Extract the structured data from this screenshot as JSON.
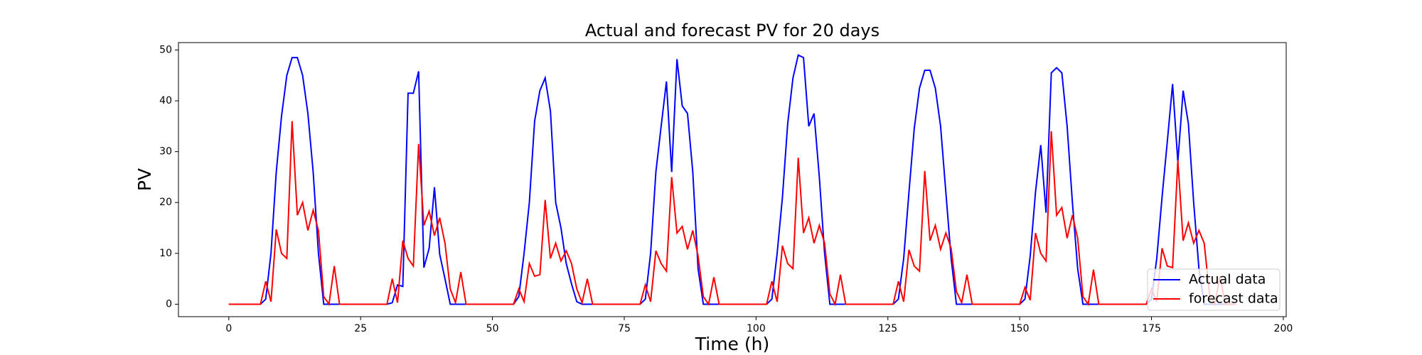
{
  "chart_data": {
    "type": "line",
    "title": "Actual and forecast PV for 20 days",
    "xlabel": "Time (h)",
    "ylabel": "PV",
    "x": [
      0,
      1,
      2,
      3,
      4,
      5,
      6,
      7,
      8,
      9,
      10,
      11,
      12,
      13,
      14,
      15,
      16,
      17,
      18,
      19,
      20,
      21,
      22,
      23,
      24,
      25,
      26,
      27,
      28,
      29,
      30,
      31,
      32,
      33,
      34,
      35,
      36,
      37,
      38,
      39,
      40,
      41,
      42,
      43,
      44,
      45,
      46,
      47,
      48,
      49,
      50,
      51,
      52,
      53,
      54,
      55,
      56,
      57,
      58,
      59,
      60,
      61,
      62,
      63,
      64,
      65,
      66,
      67,
      68,
      69,
      70,
      71,
      72,
      73,
      74,
      75,
      76,
      77,
      78,
      79,
      80,
      81,
      82,
      83,
      84,
      85,
      86,
      87,
      88,
      89,
      90,
      91,
      92,
      93,
      94,
      95,
      96,
      97,
      98,
      99,
      100,
      101,
      102,
      103,
      104,
      105,
      106,
      107,
      108,
      109,
      110,
      111,
      112,
      113,
      114,
      115,
      116,
      117,
      118,
      119,
      120,
      121,
      122,
      123,
      124,
      125,
      126,
      127,
      128,
      129,
      130,
      131,
      132,
      133,
      134,
      135,
      136,
      137,
      138,
      139,
      140,
      141,
      142,
      143,
      144,
      145,
      146,
      147,
      148,
      149,
      150,
      151,
      152,
      153,
      154,
      155,
      156,
      157,
      158,
      159,
      160,
      161,
      162,
      163,
      164,
      165,
      166,
      167,
      168,
      169,
      170,
      171,
      172,
      173,
      174,
      175,
      176,
      177,
      178,
      179,
      180,
      181,
      182,
      183,
      184,
      185,
      186,
      187,
      188,
      189,
      190,
      191
    ],
    "series": [
      {
        "name": "Actual data",
        "color": "#0000ff",
        "values": [
          0,
          0,
          0,
          0,
          0,
          0,
          0,
          1,
          10,
          26,
          37,
          45,
          48.5,
          48.5,
          45,
          37.5,
          26,
          10,
          0,
          0,
          0,
          0,
          0,
          0,
          0,
          0,
          0,
          0,
          0,
          0,
          0,
          0.3,
          3.8,
          3.5,
          41.5,
          41.5,
          45.8,
          7.2,
          11,
          23,
          9.8,
          5,
          0,
          0,
          0,
          0,
          0,
          0,
          0,
          0,
          0,
          0,
          0,
          0,
          0,
          1.5,
          10,
          20,
          36,
          42,
          44.5,
          38,
          20,
          15,
          8,
          4,
          0.5,
          0,
          0,
          0,
          0,
          0,
          0,
          0,
          0,
          0,
          0,
          0,
          0,
          1,
          10,
          26,
          35,
          43.8,
          26,
          48.2,
          39,
          37.5,
          26,
          7,
          0,
          0,
          0,
          0,
          0,
          0,
          0,
          0,
          0,
          0,
          0,
          0,
          0,
          1,
          10,
          21,
          35.5,
          44.5,
          49,
          48.5,
          35,
          37.5,
          25,
          10,
          0,
          0,
          0,
          0,
          0,
          0,
          0,
          0,
          0,
          0,
          0,
          0,
          0,
          1,
          9,
          22,
          34.5,
          42.5,
          46,
          46,
          42.5,
          35,
          22,
          9,
          0,
          0,
          0,
          0,
          0,
          0,
          0,
          0,
          0,
          0,
          0,
          0,
          0,
          1,
          9.5,
          22,
          31.3,
          18,
          45.5,
          46.5,
          45.5,
          35,
          20,
          7,
          0,
          0,
          0,
          0,
          0,
          0,
          0,
          0,
          0,
          0,
          0,
          0,
          0,
          1,
          9,
          21,
          32,
          43.3,
          28,
          42,
          35.5,
          20,
          7,
          0,
          0,
          0,
          0,
          0,
          0,
          0
        ]
      },
      {
        "name": "forecast data",
        "color": "#ff0000",
        "values": [
          0,
          0,
          0,
          0,
          0,
          0,
          0,
          4.5,
          0.5,
          14.7,
          10,
          9,
          36,
          17.5,
          20,
          14.5,
          18.5,
          14.5,
          1.5,
          0,
          7.5,
          0,
          0,
          0,
          0,
          0,
          0,
          0,
          0,
          0,
          0,
          5,
          0.3,
          12.5,
          9,
          7.5,
          31.5,
          15.5,
          18.3,
          13.5,
          17,
          12,
          3,
          0.3,
          6.3,
          0,
          0,
          0,
          0,
          0,
          0,
          0,
          0,
          0,
          0,
          3,
          0.5,
          8,
          5.5,
          5.8,
          20.5,
          9,
          12,
          8.5,
          10.5,
          8,
          3,
          0.3,
          5,
          0,
          0,
          0,
          0,
          0,
          0,
          0,
          0,
          0,
          0,
          3.8,
          0.5,
          10.5,
          8,
          6.5,
          25,
          14,
          15.3,
          10.8,
          14.5,
          9.5,
          1.5,
          0,
          5.3,
          0,
          0,
          0,
          0,
          0,
          0,
          0,
          0,
          0,
          0,
          4.5,
          0.5,
          11.5,
          8,
          7,
          28.8,
          14,
          17,
          12,
          15.5,
          12,
          2,
          0,
          5.8,
          0,
          0,
          0,
          0,
          0,
          0,
          0,
          0,
          0,
          0,
          4.5,
          0.5,
          10.7,
          7.5,
          6.5,
          26.2,
          12.5,
          15.5,
          10.8,
          14,
          11,
          2.5,
          0.3,
          5.8,
          0,
          0,
          0,
          0,
          0,
          0,
          0,
          0,
          0,
          0,
          3.3,
          0.8,
          14,
          10,
          8.5,
          34,
          17.5,
          19,
          13,
          17.5,
          13,
          1.5,
          0,
          6.8,
          0,
          0,
          0,
          0,
          0,
          0,
          0,
          0,
          0,
          0,
          3,
          0.5,
          11,
          7.5,
          7.2,
          28.3,
          12.5,
          16,
          12,
          14.5,
          12,
          2,
          0,
          5.5,
          0,
          0,
          0
        ]
      }
    ],
    "xlim": [
      -9.55,
      200.55
    ],
    "xticks": [
      0,
      25,
      50,
      75,
      100,
      125,
      150,
      175,
      200
    ],
    "ylim": [
      -2.45,
      51.45
    ],
    "yticks": [
      0,
      10,
      20,
      30,
      40,
      50
    ],
    "grid": false,
    "legend": "lower right"
  }
}
